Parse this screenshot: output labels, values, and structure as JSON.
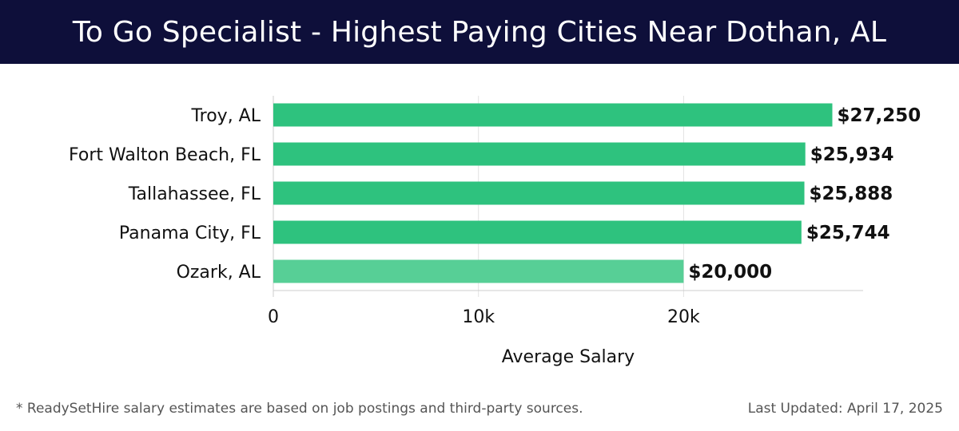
{
  "title": "To Go Specialist - Highest Paying Cities Near Dothan, AL",
  "footnote": "* ReadySetHire salary estimates are based on job postings and third-party sources.",
  "last_updated": "Last Updated: April 17, 2025",
  "colors": {
    "header_bg": "#0e0f3a",
    "bar": "#2ec27e",
    "bar_light": "#57cf96"
  },
  "chart_data": {
    "type": "bar",
    "orientation": "horizontal",
    "categories": [
      "Troy, AL",
      "Fort Walton Beach, FL",
      "Tallahassee, FL",
      "Panama City, FL",
      "Ozark, AL"
    ],
    "values": [
      27250,
      25934,
      25888,
      25744,
      20000
    ],
    "value_labels": [
      "$27,250",
      "$25,934",
      "$25,888",
      "$25,744",
      "$20,000"
    ],
    "xlabel": "Average Salary",
    "ylabel": "",
    "xlim": [
      0,
      28750
    ],
    "xticks": [
      0,
      10000,
      20000
    ],
    "xtick_labels": [
      "0",
      "10k",
      "20k"
    ],
    "grid": true
  }
}
